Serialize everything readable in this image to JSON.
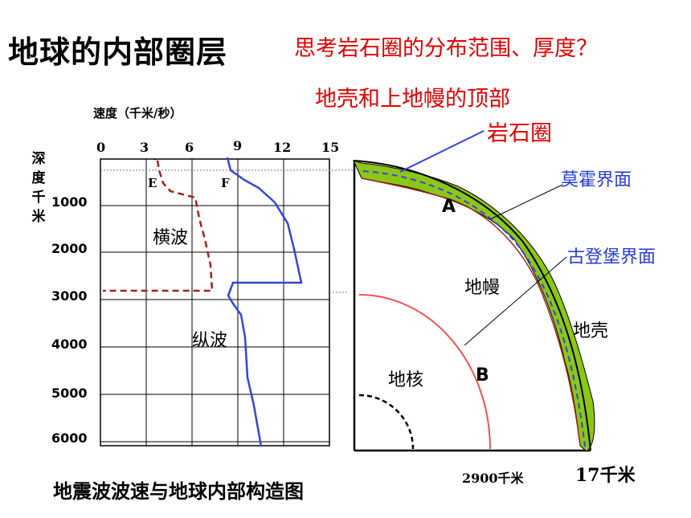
{
  "title": "地球的内部圈层",
  "question": "思考岩石圈的分布范围、厚度？",
  "annotation": {
    "crust_mantle": "地壳和上地幔的顶部",
    "lithosphere": "岩石圈"
  },
  "speed_axis": {
    "label": "速度（千米/秒）",
    "ticks": [
      "0",
      "3",
      "6",
      "9",
      "12",
      "15"
    ]
  },
  "depth_axis": {
    "label": "深度千米",
    "ticks": [
      "1000",
      "2000",
      "3000",
      "4000",
      "5000",
      "6000"
    ]
  },
  "curve_labels": {
    "e": "E",
    "f": "F"
  },
  "waves": {
    "transverse": "横波",
    "longitudinal": "纵波"
  },
  "layers": {
    "mantle": "地幔",
    "crust": "地壳",
    "core": "地核"
  },
  "boundaries": {
    "moho": "莫霍界面",
    "gutenberg": "古登堡界面"
  },
  "markers": {
    "a": "A",
    "b": "B"
  },
  "depth_labels": {
    "core": "2900千米",
    "crust": "17千米"
  },
  "caption": "地震波波速与地球内部构造图",
  "colors": {
    "red_text": "#e00000",
    "blue_text": "#2a3bd1",
    "p_wave": "#3344dd",
    "s_wave": "#a0221c",
    "crust_fill": "#8cc617",
    "core_line": "#f05050"
  }
}
